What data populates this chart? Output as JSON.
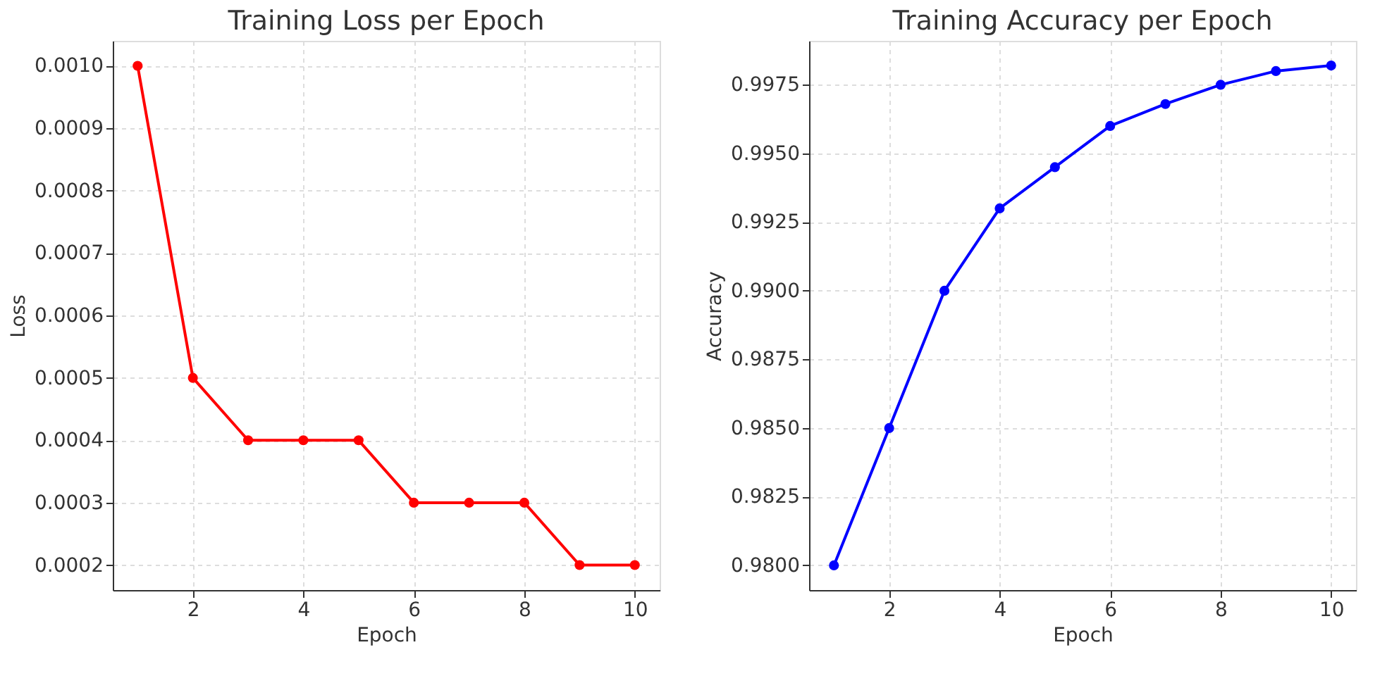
{
  "chart_data": [
    {
      "type": "line",
      "title": "Training Loss per Epoch",
      "xlabel": "Epoch",
      "ylabel": "Loss",
      "x": [
        1,
        2,
        3,
        4,
        5,
        6,
        7,
        8,
        9,
        10
      ],
      "series": [
        {
          "color": "#ff0000",
          "values": [
            0.001,
            0.0005,
            0.0004,
            0.0004,
            0.0004,
            0.0003,
            0.0003,
            0.0003,
            0.0002,
            0.0002
          ]
        }
      ],
      "xlim": [
        0.55,
        10.45
      ],
      "xticks": [
        2,
        4,
        6,
        8,
        10
      ],
      "ylim": [
        0.00016,
        0.00104
      ],
      "yticks": [
        {
          "value": 0.0002,
          "label": "0.0002"
        },
        {
          "value": 0.0003,
          "label": "0.0003"
        },
        {
          "value": 0.0004,
          "label": "0.0004"
        },
        {
          "value": 0.0005,
          "label": "0.0005"
        },
        {
          "value": 0.0006,
          "label": "0.0006"
        },
        {
          "value": 0.0007,
          "label": "0.0007"
        },
        {
          "value": 0.0008,
          "label": "0.0008"
        },
        {
          "value": 0.0009,
          "label": "0.0009"
        },
        {
          "value": 0.001,
          "label": "0.0010"
        }
      ],
      "grid": true,
      "marker": "circle",
      "line_style": "solid"
    },
    {
      "type": "line",
      "title": "Training Accuracy per Epoch",
      "xlabel": "Epoch",
      "ylabel": "Accuracy",
      "x": [
        1,
        2,
        3,
        4,
        5,
        6,
        7,
        8,
        9,
        10
      ],
      "series": [
        {
          "color": "#0000ff",
          "values": [
            0.98,
            0.985,
            0.99,
            0.993,
            0.9945,
            0.996,
            0.9968,
            0.9975,
            0.998,
            0.9982
          ]
        }
      ],
      "xlim": [
        0.55,
        10.45
      ],
      "xticks": [
        2,
        4,
        6,
        8,
        10
      ],
      "ylim": [
        0.9791,
        0.9991
      ],
      "yticks": [
        {
          "value": 0.98,
          "label": "0.9800"
        },
        {
          "value": 0.9825,
          "label": "0.9825"
        },
        {
          "value": 0.985,
          "label": "0.9850"
        },
        {
          "value": 0.9875,
          "label": "0.9875"
        },
        {
          "value": 0.99,
          "label": "0.9900"
        },
        {
          "value": 0.9925,
          "label": "0.9925"
        },
        {
          "value": 0.995,
          "label": "0.9950"
        },
        {
          "value": 0.9975,
          "label": "0.9975"
        }
      ],
      "grid": true,
      "marker": "circle",
      "line_style": "solid"
    }
  ]
}
